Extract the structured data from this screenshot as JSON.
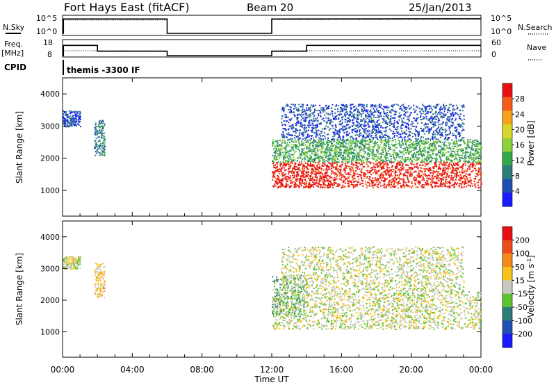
{
  "header": {
    "title": "Fort Hays East (fitACF)",
    "beam": "Beam 20",
    "date": "25/Jan/2013"
  },
  "panel_labels": {
    "nsky": "N.Sky",
    "nsearch": "N.Search",
    "freq_top": "Freq.",
    "freq_unit": "[MHz]",
    "nave": "Nave",
    "cpid": "CPID"
  },
  "nsky_ticks": [
    "10^5",
    "10^0"
  ],
  "nsearch_ticks": [
    "10^5",
    "10^0"
  ],
  "freq_ticks": [
    "18",
    "8"
  ],
  "nave_ticks": [
    "60",
    "0"
  ],
  "cpid_text": "themis -3300 IF",
  "xaxis": {
    "label": "Time UT",
    "ticks": [
      "00:00",
      "04:00",
      "08:00",
      "12:00",
      "16:00",
      "20:00",
      "00:00"
    ]
  },
  "chart_data": [
    {
      "type": "line",
      "name_label": "N.Sky / N.Search",
      "x_hours": [
        0,
        0.05,
        0.05,
        6.0,
        6.0,
        12.0,
        12.0,
        24.0
      ],
      "nsky_log": [
        0,
        0,
        4.3,
        4.3,
        0,
        0,
        4.3,
        4.4
      ],
      "nsearch_log": [
        0,
        0,
        4.0,
        4.0,
        0,
        0,
        4.1,
        4.2
      ]
    },
    {
      "type": "line",
      "name_label": "Freq. / Nave",
      "freq_mhz": {
        "x": [
          0,
          0.05,
          0.05,
          2.0,
          2.0,
          6.0,
          6.0,
          12.0,
          12.0,
          14.0,
          14.0,
          24.0
        ],
        "y": [
          8,
          8,
          15,
          15,
          11,
          11,
          8,
          8,
          11,
          11,
          15,
          15
        ]
      },
      "nave_level": 20
    },
    {
      "type": "heatmap",
      "title": "",
      "ylabel": "Slant Range [km]",
      "xlabel": "Time UT",
      "xlim": [
        0,
        24
      ],
      "ylim": [
        200,
        4500
      ],
      "yticks": [
        "1000",
        "2000",
        "3000",
        "4000"
      ],
      "colorbar_label": "Power [dB]",
      "colorbar_ticks": [
        "4",
        "8",
        "12",
        "16",
        "20",
        "24",
        "28"
      ],
      "colors": [
        "#1a1aff",
        "#1f4fb0",
        "#2e7d7d",
        "#33a84a",
        "#8fd13a",
        "#d8d82a",
        "#f7a21b",
        "#f55a1a",
        "#e81010"
      ],
      "regions": [
        {
          "label": "00:00-01:00 echoes",
          "t": [
            0.0,
            1.0
          ],
          "r": [
            3000,
            3500
          ],
          "level": 1
        },
        {
          "label": "02:00 echoes",
          "t": [
            1.8,
            2.4
          ],
          "r": [
            2100,
            3200
          ],
          "level": 2
        },
        {
          "label": "12:00-24:00 main band",
          "t": [
            12.0,
            24.0
          ],
          "r": [
            1100,
            1900
          ],
          "level": 8
        },
        {
          "label": "12:00-24:00 upper band",
          "t": [
            12.0,
            24.0
          ],
          "r": [
            1900,
            2600
          ],
          "level": 3
        },
        {
          "label": "upper scattered",
          "t": [
            12.5,
            23.0
          ],
          "r": [
            2600,
            3700
          ],
          "level": 1
        }
      ]
    },
    {
      "type": "heatmap",
      "title": "",
      "ylabel": "Slant Range [km]",
      "xlabel": "Time UT",
      "xlim": [
        0,
        24
      ],
      "ylim": [
        200,
        4500
      ],
      "yticks": [
        "1000",
        "2000",
        "3000",
        "4000"
      ],
      "colorbar_label": "Velocity [m s^-1]",
      "colorbar_ticks": [
        "200",
        "100",
        "50",
        "15",
        "-15",
        "-50",
        "-100",
        "-200"
      ],
      "colors": [
        "#1a1aff",
        "#1f4fb0",
        "#2e7d7d",
        "#5cc22e",
        "#c8c8c0",
        "#f7c21b",
        "#f58a1a",
        "#f04a1a",
        "#e81010"
      ],
      "regions": [
        {
          "label": "00:00 grey",
          "t": [
            0.0,
            1.0
          ],
          "r": [
            3000,
            3400
          ],
          "level": 4
        },
        {
          "label": "02:00 orange",
          "t": [
            1.8,
            2.4
          ],
          "r": [
            2100,
            3200
          ],
          "level": 5
        },
        {
          "label": "12:00-24:00 main band",
          "t": [
            12.0,
            24.0
          ],
          "r": [
            1100,
            2300
          ],
          "level": 4
        },
        {
          "label": "12:00-14:00 green",
          "t": [
            12.0,
            14.0
          ],
          "r": [
            1500,
            2800
          ],
          "level": 3
        },
        {
          "label": "upper scattered",
          "t": [
            12.5,
            23.0
          ],
          "r": [
            2300,
            3700
          ],
          "level": 4
        }
      ]
    }
  ]
}
